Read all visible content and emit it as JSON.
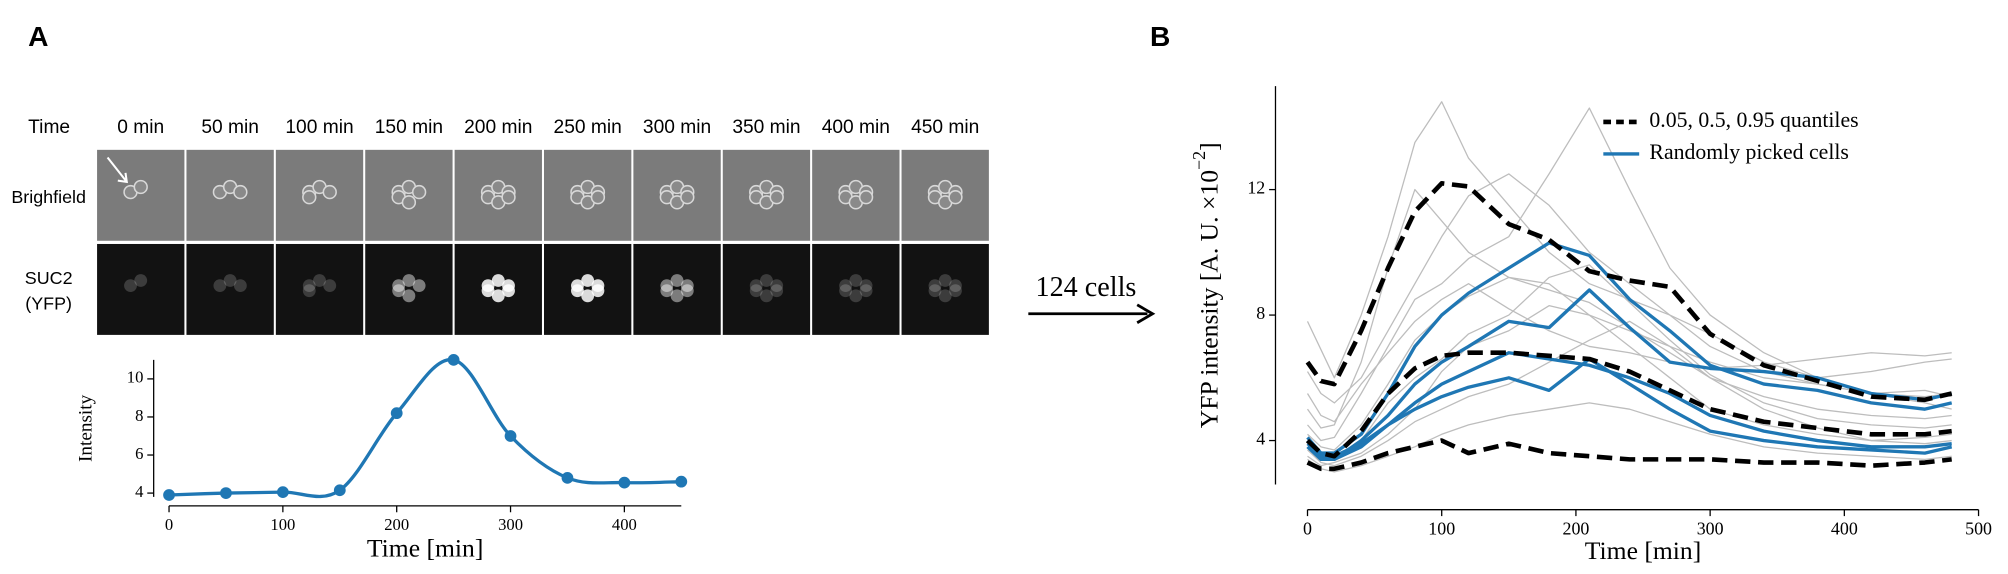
{
  "panels": [
    "A",
    "B"
  ],
  "panel_a": {
    "time_label": "Time",
    "columns": [
      "0 min",
      "50 min",
      "100 min",
      "150 min",
      "200 min",
      "250 min",
      "300 min",
      "350 min",
      "400 min",
      "450 min"
    ],
    "rows": [
      "Brighfield",
      [
        "SUC2",
        "(YFP)"
      ]
    ]
  },
  "arrow_label": "124 cells",
  "chart_data": [
    {
      "type": "line",
      "xlabel": "Time [min]",
      "ylabel": "Intensity",
      "x": [
        0,
        50,
        100,
        150,
        200,
        250,
        300,
        350,
        400,
        450
      ],
      "values": [
        3.9,
        4.0,
        4.05,
        4.15,
        8.2,
        11.0,
        7.0,
        4.8,
        4.55,
        4.6
      ],
      "color": "#1f77b4",
      "smooth": true,
      "markers": true,
      "xlim": [
        0,
        450
      ],
      "ylim": [
        3.8,
        11
      ],
      "xticks": [
        0,
        100,
        200,
        300,
        400
      ],
      "yticks": [
        4,
        6,
        8,
        10
      ]
    },
    {
      "type": "line",
      "xlabel": "Time [min]",
      "ylabel": [
        "YFP intensity [A. U. ×10",
        "−2",
        "]"
      ],
      "x": [
        0,
        10,
        20,
        40,
        60,
        80,
        100,
        120,
        150,
        180,
        210,
        240,
        270,
        300,
        340,
        380,
        420,
        460,
        480
      ],
      "series": [
        {
          "color": "#bdbdbd",
          "width": 1,
          "lines": [
            [
              7.8,
              6.9,
              6.0,
              8.0,
              10.5,
              13.5,
              14.8,
              13.0,
              11.5,
              10.0,
              9.0,
              8.5,
              8.0,
              7.4,
              6.5,
              6.0,
              6.2,
              6.5,
              6.6
            ],
            [
              5.0,
              4.4,
              4.5,
              6.5,
              9.5,
              12.0,
              11.0,
              10.0,
              9.2,
              9.0,
              8.0,
              7.5,
              7.0,
              6.5,
              6.0,
              5.8,
              5.5,
              5.6,
              5.4
            ],
            [
              3.7,
              3.3,
              3.2,
              3.5,
              4.0,
              4.6,
              5.0,
              5.4,
              5.8,
              6.5,
              7.2,
              7.8,
              7.0,
              6.0,
              5.0,
              4.4,
              4.0,
              3.9,
              4.0
            ],
            [
              4.5,
              4.0,
              4.1,
              5.5,
              7.0,
              8.5,
              9.0,
              9.8,
              10.5,
              12.5,
              14.6,
              12.0,
              9.5,
              8.0,
              6.8,
              6.0,
              5.5,
              5.2,
              5.0
            ],
            [
              3.5,
              3.2,
              3.3,
              3.6,
              4.2,
              5.0,
              6.2,
              7.0,
              7.5,
              8.3,
              8.0,
              7.0,
              6.0,
              5.0,
              4.5,
              4.2,
              4.0,
              4.1,
              4.2
            ],
            [
              6.2,
              5.5,
              5.2,
              6.0,
              7.5,
              9.0,
              10.5,
              11.8,
              12.5,
              11.5,
              10.0,
              9.0,
              8.0,
              7.0,
              6.2,
              5.8,
              5.5,
              5.4,
              5.5
            ],
            [
              3.4,
              3.1,
              3.0,
              3.2,
              3.5,
              3.8,
              4.2,
              4.5,
              4.8,
              5.0,
              5.2,
              5.0,
              4.6,
              4.2,
              3.8,
              3.6,
              3.5,
              3.4,
              3.5
            ],
            [
              5.5,
              4.8,
              4.6,
              5.8,
              6.8,
              7.8,
              8.5,
              9.0,
              8.2,
              7.5,
              7.0,
              6.8,
              6.5,
              6.3,
              6.4,
              6.6,
              6.8,
              6.7,
              6.8
            ],
            [
              4.2,
              3.8,
              3.7,
              4.5,
              5.8,
              7.2,
              8.0,
              8.6,
              9.2,
              8.8,
              8.4,
              7.6,
              6.8,
              6.0,
              5.4,
              5.0,
              4.8,
              4.7,
              4.8
            ],
            [
              3.9,
              3.5,
              3.4,
              4.0,
              5.2,
              6.0,
              6.6,
              7.4,
              8.0,
              9.2,
              9.6,
              8.4,
              7.2,
              6.1,
              5.2,
              4.7,
              4.5,
              4.4,
              4.5
            ]
          ]
        },
        {
          "name": "Randomly picked cells",
          "color": "#1f77b4",
          "width": 2.6,
          "lines": [
            [
              3.9,
              3.6,
              3.6,
              4.2,
              5.5,
              7.0,
              8.0,
              8.7,
              9.5,
              10.3,
              9.9,
              8.5,
              7.5,
              6.4,
              5.8,
              5.6,
              5.2,
              5.0,
              5.2
            ],
            [
              4.0,
              3.5,
              3.4,
              4.0,
              4.8,
              5.8,
              6.5,
              7.0,
              7.8,
              7.6,
              8.8,
              7.6,
              6.5,
              6.3,
              6.2,
              6.0,
              5.5,
              5.3,
              5.5
            ],
            [
              3.8,
              3.4,
              3.4,
              3.8,
              4.5,
              5.2,
              5.8,
              6.2,
              6.8,
              6.6,
              6.4,
              6.0,
              5.5,
              4.8,
              4.3,
              4.0,
              3.8,
              3.8,
              3.9
            ],
            [
              4.1,
              3.6,
              3.5,
              3.9,
              4.5,
              5.0,
              5.4,
              5.7,
              6.0,
              5.6,
              6.6,
              5.8,
              5.0,
              4.3,
              4.0,
              3.8,
              3.7,
              3.6,
              3.8
            ]
          ]
        },
        {
          "name": "0.05, 0.5, 0.95 quantiles",
          "color": "#000000",
          "width": 3.6,
          "dashed": true,
          "lines": [
            [
              3.3,
              3.1,
              3.1,
              3.3,
              3.6,
              3.8,
              4.0,
              3.6,
              3.9,
              3.6,
              3.5,
              3.4,
              3.4,
              3.4,
              3.3,
              3.3,
              3.2,
              3.3,
              3.4
            ],
            [
              4.0,
              3.6,
              3.5,
              4.3,
              5.5,
              6.3,
              6.7,
              6.8,
              6.8,
              6.7,
              6.6,
              6.2,
              5.6,
              5.0,
              4.6,
              4.4,
              4.2,
              4.2,
              4.3
            ],
            [
              6.5,
              5.9,
              5.8,
              7.5,
              9.5,
              11.3,
              12.2,
              12.1,
              10.9,
              10.4,
              9.4,
              9.1,
              8.9,
              7.4,
              6.4,
              5.9,
              5.4,
              5.3,
              5.5
            ]
          ]
        }
      ],
      "legend": "upper right",
      "xlim": [
        0,
        500
      ],
      "ylim": [
        2.6,
        15.3
      ],
      "xticks": [
        0,
        100,
        200,
        300,
        400,
        500
      ],
      "yticks": [
        4,
        8,
        12
      ]
    }
  ]
}
